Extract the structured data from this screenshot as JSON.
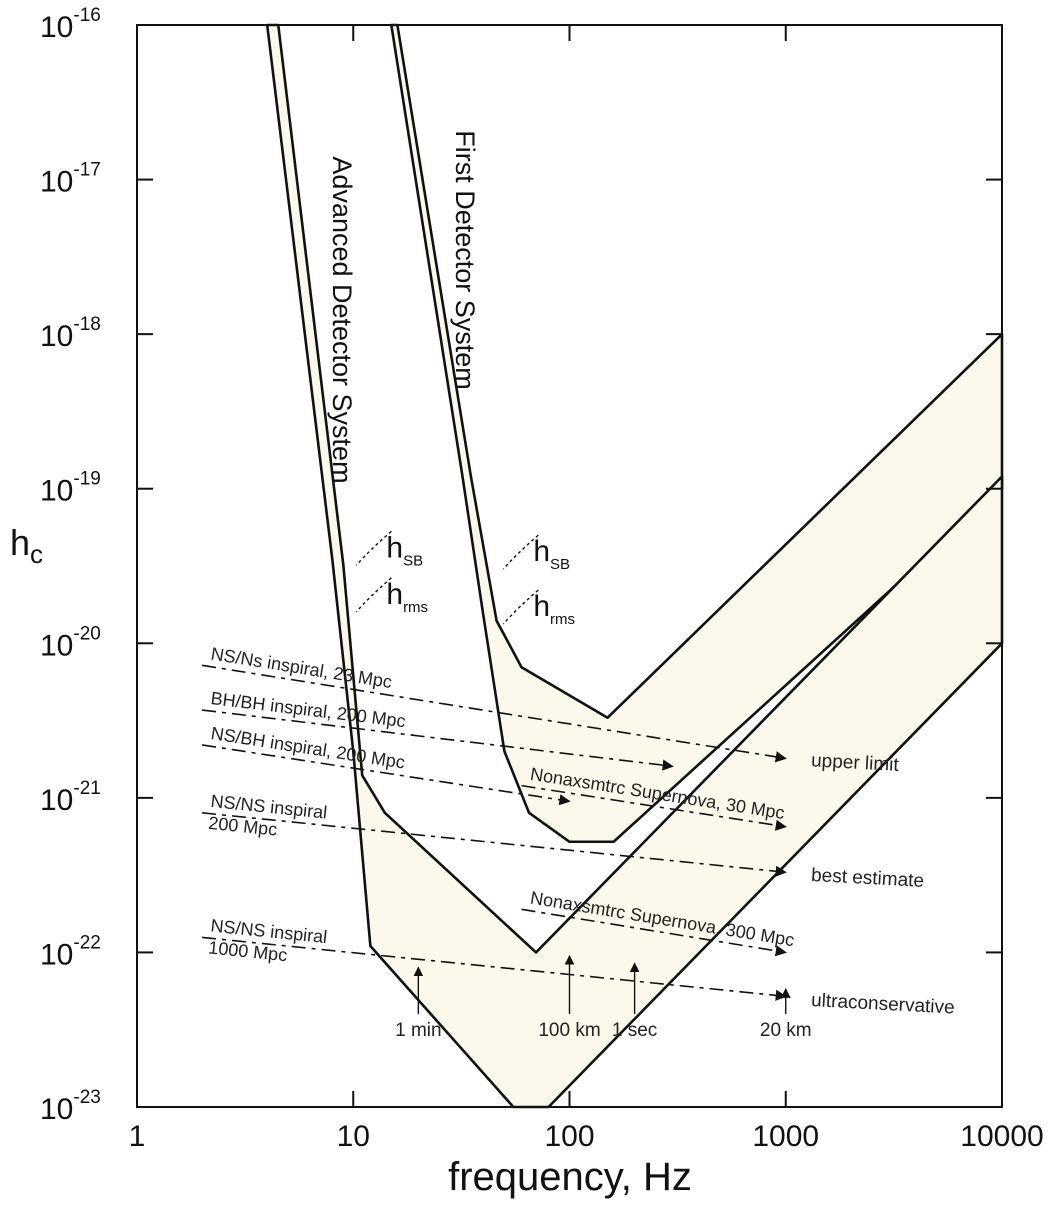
{
  "chart_data": {
    "type": "line",
    "title": "",
    "xlabel": "frequency,  Hz",
    "ylabel": "h",
    "ylabel_sub": "c",
    "x_scale": "log",
    "y_scale": "log",
    "xlim": [
      1,
      10000
    ],
    "ylim": [
      1e-23,
      1e-16
    ],
    "x_ticks": [
      {
        "value": 1,
        "label": "1"
      },
      {
        "value": 10,
        "label": "10"
      },
      {
        "value": 100,
        "label": "100"
      },
      {
        "value": 1000,
        "label": "1000"
      },
      {
        "value": 10000,
        "label": "10000"
      }
    ],
    "y_ticks": [
      {
        "value": 1e-16,
        "base": "10",
        "exp": "-16"
      },
      {
        "value": 1e-17,
        "base": "10",
        "exp": "-17"
      },
      {
        "value": 1e-18,
        "base": "10",
        "exp": "-18"
      },
      {
        "value": 1e-19,
        "base": "10",
        "exp": "-19"
      },
      {
        "value": 1e-20,
        "base": "10",
        "exp": "-20"
      },
      {
        "value": 1e-21,
        "base": "10",
        "exp": "-21"
      },
      {
        "value": 1e-22,
        "base": "10",
        "exp": "-22"
      },
      {
        "value": 1e-23,
        "base": "10",
        "exp": "-23"
      }
    ],
    "grid": false,
    "detector_bands": [
      {
        "label": "First Detector System",
        "upper": [
          [
            16,
            1e-16
          ],
          [
            35,
            1.2e-19
          ],
          [
            46,
            1.4e-20
          ],
          [
            60,
            7e-21
          ],
          [
            150,
            3.3e-21
          ],
          [
            10000,
            1e-18
          ]
        ],
        "lower": [
          [
            15,
            1e-16
          ],
          [
            32,
            1.2e-19
          ],
          [
            40,
            1.5e-20
          ],
          [
            50,
            2e-21
          ],
          [
            65,
            8e-22
          ],
          [
            100,
            5.2e-22
          ],
          [
            160,
            5.2e-22
          ],
          [
            10000,
            1e-19
          ]
        ],
        "annotations": [
          {
            "sym": "h",
            "sub": "SB",
            "x": 55,
            "y": 3.4e-20
          },
          {
            "sym": "h",
            "sub": "rms",
            "x": 55,
            "y": 1.5e-20
          }
        ]
      },
      {
        "label": "Advanced Detector System",
        "upper": [
          [
            4.5,
            1e-16
          ],
          [
            9,
            3.2e-20
          ],
          [
            11,
            1.4e-21
          ],
          [
            14,
            8e-22
          ],
          [
            70,
            1e-22
          ],
          [
            10000,
            1.2e-19
          ]
        ],
        "lower": [
          [
            4,
            1e-16
          ],
          [
            8,
            3.5e-20
          ],
          [
            10,
            2e-21
          ],
          [
            12,
            1.1e-22
          ],
          [
            55,
            1e-23
          ],
          [
            80,
            1e-23
          ],
          [
            10000,
            1e-20
          ]
        ],
        "annotations": [
          {
            "sym": "h",
            "sub": "SB",
            "x": 11.5,
            "y": 3.6e-20
          },
          {
            "sym": "h",
            "sub": "rms",
            "x": 11.5,
            "y": 1.8e-20
          }
        ]
      }
    ],
    "signal_lines": [
      {
        "label": "NS/Ns inspiral, 23 Mpc",
        "start": [
          2,
          7.2e-21
        ],
        "end": [
          1000,
          1.8e-21
        ]
      },
      {
        "label": "BH/BH inspiral, 200 Mpc",
        "start": [
          2,
          3.7e-21
        ],
        "end": [
          300,
          1.6e-21
        ]
      },
      {
        "label": "NS/BH  inspiral, 200 Mpc",
        "start": [
          2,
          2.2e-21
        ],
        "end": [
          100,
          9.5e-22
        ]
      },
      {
        "label": "Nonaxsmtrc Supernova, 30 Mpc",
        "start": [
          60,
          1.2e-21
        ],
        "end": [
          1000,
          6.5e-22
        ]
      },
      {
        "label": "NS/NS  inspiral\n200 Mpc",
        "start": [
          2,
          8e-22
        ],
        "end": [
          1000,
          3.3e-22
        ]
      },
      {
        "label": "Nonaxsmtrc Supernova, 300 Mpc",
        "start": [
          60,
          1.9e-22
        ],
        "end": [
          1000,
          1e-22
        ]
      },
      {
        "label": "NS/NS  inspiral\n1000 Mpc",
        "start": [
          2,
          1.25e-22
        ],
        "end": [
          1000,
          5.2e-23
        ]
      }
    ],
    "side_labels": [
      {
        "text": "upper limit",
        "x": 1200,
        "y": 1.6e-21
      },
      {
        "text": "best estimate",
        "x": 1200,
        "y": 2.9e-22
      },
      {
        "text": "ultraconservative",
        "x": 1200,
        "y": 4.5e-23
      }
    ],
    "markers": [
      {
        "label": "1 min",
        "x": 20,
        "from": 4e-23,
        "to": 8e-23
      },
      {
        "label": "100 km",
        "x": 100,
        "from": 4e-23,
        "to": 9.5e-23
      },
      {
        "label": "1 sec",
        "x": 200,
        "from": 4e-23,
        "to": 8.5e-23
      },
      {
        "label": "20 km",
        "x": 1000,
        "from": 4e-23,
        "to": 5.8e-23
      }
    ]
  }
}
